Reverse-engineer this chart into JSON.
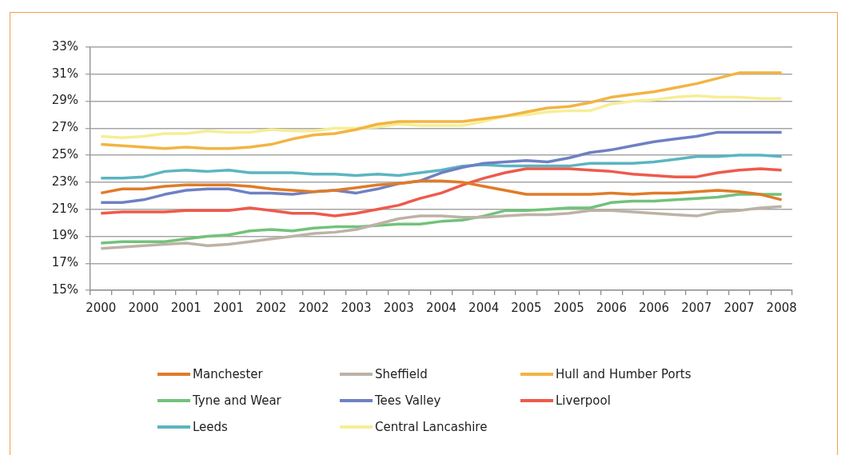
{
  "chart_data": {
    "type": "line",
    "categories": [
      "2000",
      null,
      "2000",
      null,
      "2001",
      null,
      "2001",
      null,
      "2002",
      null,
      "2002",
      null,
      "2003",
      null,
      "2003",
      null,
      "2004",
      null,
      "2004",
      null,
      "2005",
      null,
      "2005",
      null,
      "2006",
      null,
      "2006",
      null,
      "2007",
      null,
      "2007",
      null,
      "2008"
    ],
    "ylim": [
      15,
      33
    ],
    "yticks": [
      {
        "value": 15,
        "label": "15%"
      },
      {
        "value": 17,
        "label": "17%"
      },
      {
        "value": 19,
        "label": "19%"
      },
      {
        "value": 21,
        "label": "21%"
      },
      {
        "value": 23,
        "label": "23%"
      },
      {
        "value": 25,
        "label": "25%"
      },
      {
        "value": 27,
        "label": "27%"
      },
      {
        "value": 29,
        "label": "29%"
      },
      {
        "value": 31,
        "label": "31%"
      },
      {
        "value": 33,
        "label": "33%"
      }
    ],
    "grid": "y",
    "legend": "bottom",
    "series": [
      {
        "name": "Manchester",
        "color": "#e07b28",
        "values": [
          22.2,
          22.5,
          22.5,
          22.7,
          22.8,
          22.8,
          22.8,
          22.7,
          22.5,
          22.4,
          22.3,
          22.4,
          22.6,
          22.8,
          22.9,
          23.1,
          23.1,
          23.0,
          22.7,
          22.4,
          22.1,
          22.1,
          22.1,
          22.1,
          22.2,
          22.1,
          22.2,
          22.2,
          22.3,
          22.4,
          22.3,
          22.1,
          21.7
        ]
      },
      {
        "name": "Sheffield",
        "color": "#bdb2a7",
        "values": [
          18.1,
          18.2,
          18.3,
          18.4,
          18.5,
          18.3,
          18.4,
          18.6,
          18.8,
          19.0,
          19.2,
          19.3,
          19.5,
          19.9,
          20.3,
          20.5,
          20.5,
          20.4,
          20.4,
          20.5,
          20.6,
          20.6,
          20.7,
          20.9,
          20.9,
          20.8,
          20.7,
          20.6,
          20.5,
          20.8,
          20.9,
          21.1,
          21.2
        ]
      },
      {
        "name": "Hull and Humber Ports",
        "color": "#f2b442",
        "values": [
          25.8,
          25.7,
          25.6,
          25.5,
          25.6,
          25.5,
          25.5,
          25.6,
          25.8,
          26.2,
          26.5,
          26.6,
          26.9,
          27.3,
          27.5,
          27.5,
          27.5,
          27.5,
          27.7,
          27.9,
          28.2,
          28.5,
          28.6,
          28.9,
          29.3,
          29.5,
          29.7,
          30.0,
          30.3,
          30.7,
          31.1,
          31.1,
          31.1
        ]
      },
      {
        "name": "Tyne and Wear",
        "color": "#72c27a",
        "values": [
          18.5,
          18.6,
          18.6,
          18.6,
          18.8,
          19.0,
          19.1,
          19.4,
          19.5,
          19.4,
          19.6,
          19.7,
          19.7,
          19.8,
          19.9,
          19.9,
          20.1,
          20.2,
          20.5,
          20.9,
          20.9,
          21.0,
          21.1,
          21.1,
          21.5,
          21.6,
          21.6,
          21.7,
          21.8,
          21.9,
          22.1,
          22.1,
          22.1
        ]
      },
      {
        "name": "Tees Valley",
        "color": "#6f80c4",
        "values": [
          21.5,
          21.5,
          21.7,
          22.1,
          22.4,
          22.5,
          22.5,
          22.2,
          22.2,
          22.1,
          22.3,
          22.4,
          22.2,
          22.5,
          22.9,
          23.1,
          23.7,
          24.1,
          24.4,
          24.5,
          24.6,
          24.5,
          24.8,
          25.2,
          25.4,
          25.7,
          26.0,
          26.2,
          26.4,
          26.7,
          26.7,
          26.7,
          26.7
        ]
      },
      {
        "name": "Liverpool",
        "color": "#ee5a4c",
        "values": [
          20.7,
          20.8,
          20.8,
          20.8,
          20.9,
          20.9,
          20.9,
          21.1,
          20.9,
          20.7,
          20.7,
          20.5,
          20.7,
          21.0,
          21.3,
          21.8,
          22.2,
          22.8,
          23.3,
          23.7,
          24.0,
          24.0,
          24.0,
          23.9,
          23.8,
          23.6,
          23.5,
          23.4,
          23.4,
          23.7,
          23.9,
          24.0,
          23.9
        ]
      },
      {
        "name": "Leeds",
        "color": "#5bb5c0",
        "values": [
          23.3,
          23.3,
          23.4,
          23.8,
          23.9,
          23.8,
          23.9,
          23.7,
          23.7,
          23.7,
          23.6,
          23.6,
          23.5,
          23.6,
          23.5,
          23.7,
          23.9,
          24.2,
          24.3,
          24.2,
          24.2,
          24.2,
          24.2,
          24.4,
          24.4,
          24.4,
          24.5,
          24.7,
          24.9,
          24.9,
          25.0,
          25.0,
          24.9
        ]
      },
      {
        "name": "Central Lancashire",
        "color": "#f6ee96",
        "values": [
          26.4,
          26.3,
          26.4,
          26.6,
          26.6,
          26.8,
          26.7,
          26.7,
          26.9,
          26.8,
          26.8,
          27.0,
          27.0,
          27.1,
          27.3,
          27.2,
          27.2,
          27.2,
          27.5,
          27.9,
          28.0,
          28.2,
          28.3,
          28.3,
          28.8,
          29.0,
          29.1,
          29.3,
          29.4,
          29.3,
          29.3,
          29.2,
          29.2
        ]
      }
    ]
  }
}
